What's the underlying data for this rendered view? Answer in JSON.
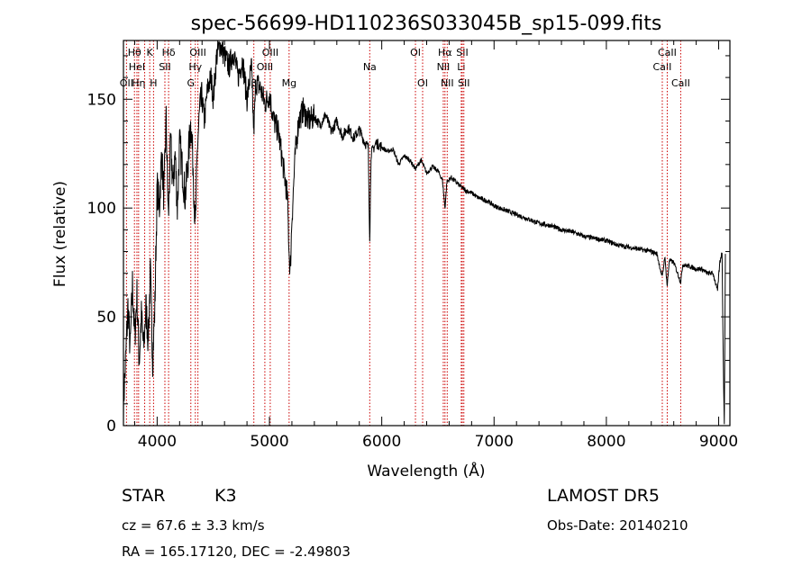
{
  "chart_data": {
    "type": "line",
    "title": "spec-56699-HD110236S033045B_sp15-099.fits",
    "xlabel": "Wavelength (Å)",
    "ylabel": "Flux (relative)",
    "xlim": [
      3700,
      9100
    ],
    "ylim": [
      0,
      177
    ],
    "xticks": [
      4000,
      5000,
      6000,
      7000,
      8000,
      9000
    ],
    "yticks": [
      0,
      50,
      100,
      150
    ],
    "grid": false,
    "line_color": "#000000",
    "marker_color": "#cc0000",
    "anchors": [
      [
        3700,
        10
      ],
      [
        3720,
        30
      ],
      [
        3740,
        55
      ],
      [
        3760,
        35
      ],
      [
        3780,
        65
      ],
      [
        3800,
        40
      ],
      [
        3820,
        60
      ],
      [
        3840,
        30
      ],
      [
        3860,
        50
      ],
      [
        3880,
        35
      ],
      [
        3900,
        55
      ],
      [
        3920,
        40
      ],
      [
        3940,
        70
      ],
      [
        3960,
        30
      ],
      [
        3980,
        55
      ],
      [
        4000,
        110
      ],
      [
        4020,
        100
      ],
      [
        4040,
        125
      ],
      [
        4060,
        105
      ],
      [
        4080,
        140
      ],
      [
        4100,
        95
      ],
      [
        4120,
        130
      ],
      [
        4140,
        110
      ],
      [
        4160,
        125
      ],
      [
        4180,
        100
      ],
      [
        4200,
        130
      ],
      [
        4220,
        120
      ],
      [
        4250,
        105
      ],
      [
        4280,
        125
      ],
      [
        4300,
        140
      ],
      [
        4320,
        120
      ],
      [
        4340,
        90
      ],
      [
        4360,
        130
      ],
      [
        4380,
        145
      ],
      [
        4400,
        150
      ],
      [
        4420,
        140
      ],
      [
        4450,
        155
      ],
      [
        4480,
        160
      ],
      [
        4500,
        150
      ],
      [
        4530,
        170
      ],
      [
        4560,
        175
      ],
      [
        4600,
        170
      ],
      [
        4640,
        165
      ],
      [
        4680,
        172
      ],
      [
        4720,
        160
      ],
      [
        4760,
        168
      ],
      [
        4800,
        150
      ],
      [
        4840,
        165
      ],
      [
        4860,
        135
      ],
      [
        4880,
        158
      ],
      [
        4920,
        155
      ],
      [
        4960,
        148
      ],
      [
        5000,
        152
      ],
      [
        5040,
        140
      ],
      [
        5080,
        135
      ],
      [
        5120,
        120
      ],
      [
        5160,
        105
      ],
      [
        5175,
        80
      ],
      [
        5185,
        70
      ],
      [
        5200,
        95
      ],
      [
        5230,
        125
      ],
      [
        5260,
        140
      ],
      [
        5300,
        145
      ],
      [
        5350,
        140
      ],
      [
        5400,
        142
      ],
      [
        5450,
        138
      ],
      [
        5500,
        143
      ],
      [
        5550,
        135
      ],
      [
        5600,
        140
      ],
      [
        5650,
        133
      ],
      [
        5700,
        137
      ],
      [
        5750,
        132
      ],
      [
        5800,
        136
      ],
      [
        5850,
        130
      ],
      [
        5880,
        128
      ],
      [
        5893,
        85
      ],
      [
        5905,
        125
      ],
      [
        5950,
        130
      ],
      [
        6000,
        128
      ],
      [
        6050,
        126
      ],
      [
        6100,
        127
      ],
      [
        6150,
        120
      ],
      [
        6200,
        124
      ],
      [
        6250,
        122
      ],
      [
        6300,
        118
      ],
      [
        6350,
        122
      ],
      [
        6400,
        116
      ],
      [
        6450,
        119
      ],
      [
        6500,
        117
      ],
      [
        6540,
        113
      ],
      [
        6563,
        100
      ],
      [
        6580,
        112
      ],
      [
        6620,
        114
      ],
      [
        6660,
        112
      ],
      [
        6700,
        110
      ],
      [
        6750,
        108
      ],
      [
        6800,
        107
      ],
      [
        6850,
        105
      ],
      [
        6900,
        104
      ],
      [
        6950,
        103
      ],
      [
        7000,
        101
      ],
      [
        7100,
        99
      ],
      [
        7200,
        97
      ],
      [
        7300,
        95
      ],
      [
        7400,
        93
      ],
      [
        7500,
        92
      ],
      [
        7600,
        90
      ],
      [
        7700,
        89
      ],
      [
        7800,
        87
      ],
      [
        7900,
        86
      ],
      [
        8000,
        85
      ],
      [
        8100,
        83
      ],
      [
        8200,
        82
      ],
      [
        8300,
        81
      ],
      [
        8400,
        80
      ],
      [
        8450,
        79
      ],
      [
        8498,
        68
      ],
      [
        8520,
        78
      ],
      [
        8542,
        64
      ],
      [
        8560,
        76
      ],
      [
        8600,
        75
      ],
      [
        8662,
        66
      ],
      [
        8680,
        74
      ],
      [
        8750,
        73
      ],
      [
        8800,
        72
      ],
      [
        8850,
        72
      ],
      [
        8900,
        70
      ],
      [
        8950,
        70
      ],
      [
        8990,
        62
      ],
      [
        9010,
        75
      ],
      [
        9030,
        80
      ],
      [
        9040,
        35
      ],
      [
        9050,
        0
      ],
      [
        9060,
        80
      ]
    ],
    "spectral_lines": [
      {
        "wl": 3727,
        "labels": [
          "OII"
        ],
        "row": 3
      },
      {
        "wl": 3798,
        "labels": [
          "Hθ"
        ],
        "row": 1
      },
      {
        "wl": 3820,
        "labels": [
          "HeI"
        ],
        "row": 2
      },
      {
        "wl": 3835,
        "labels": [
          "Hη"
        ],
        "row": 3
      },
      {
        "wl": 3889,
        "labels": [],
        "row": 1
      },
      {
        "wl": 3934,
        "labels": [
          "K"
        ],
        "row": 1
      },
      {
        "wl": 3968,
        "labels": [
          "H"
        ],
        "row": 3
      },
      {
        "wl": 4069,
        "labels": [
          "SII"
        ],
        "row": 2
      },
      {
        "wl": 4102,
        "labels": [
          "Hδ"
        ],
        "row": 1
      },
      {
        "wl": 4300,
        "labels": [
          "G"
        ],
        "row": 3
      },
      {
        "wl": 4340,
        "labels": [
          "Hγ"
        ],
        "row": 2
      },
      {
        "wl": 4363,
        "labels": [
          "OIII"
        ],
        "row": 1
      },
      {
        "wl": 4861,
        "labels": [
          "β"
        ],
        "row": 3
      },
      {
        "wl": 4959,
        "labels": [
          "OIII"
        ],
        "row": 2
      },
      {
        "wl": 5007,
        "labels": [
          "OIII"
        ],
        "row": 1
      },
      {
        "wl": 5175,
        "labels": [
          "Mg"
        ],
        "row": 3
      },
      {
        "wl": 5893,
        "labels": [
          "Na"
        ],
        "row": 2
      },
      {
        "wl": 6300,
        "labels": [
          "OI"
        ],
        "row": 1
      },
      {
        "wl": 6364,
        "labels": [
          "OI"
        ],
        "row": 3
      },
      {
        "wl": 6548,
        "labels": [
          "NII"
        ],
        "row": 2
      },
      {
        "wl": 6563,
        "labels": [
          "Hα"
        ],
        "row": 1
      },
      {
        "wl": 6583,
        "labels": [
          "NII"
        ],
        "row": 3
      },
      {
        "wl": 6708,
        "labels": [
          "Li"
        ],
        "row": 2
      },
      {
        "wl": 6717,
        "labels": [
          "SII"
        ],
        "row": 1
      },
      {
        "wl": 6731,
        "labels": [
          "SII"
        ],
        "row": 3
      },
      {
        "wl": 8498,
        "labels": [
          "CaII"
        ],
        "row": 2
      },
      {
        "wl": 8542,
        "labels": [
          "CaII"
        ],
        "row": 1
      },
      {
        "wl": 8662,
        "labels": [
          "CaII"
        ],
        "row": 3
      }
    ]
  },
  "info": {
    "class": "STAR",
    "subclass": "K3",
    "survey": "LAMOST DR5",
    "cz": "cz = 67.6 ± 3.3 km/s",
    "obs_date": "Obs-Date: 20140210",
    "radec": "RA = 165.17120, DEC =  -2.49803"
  }
}
